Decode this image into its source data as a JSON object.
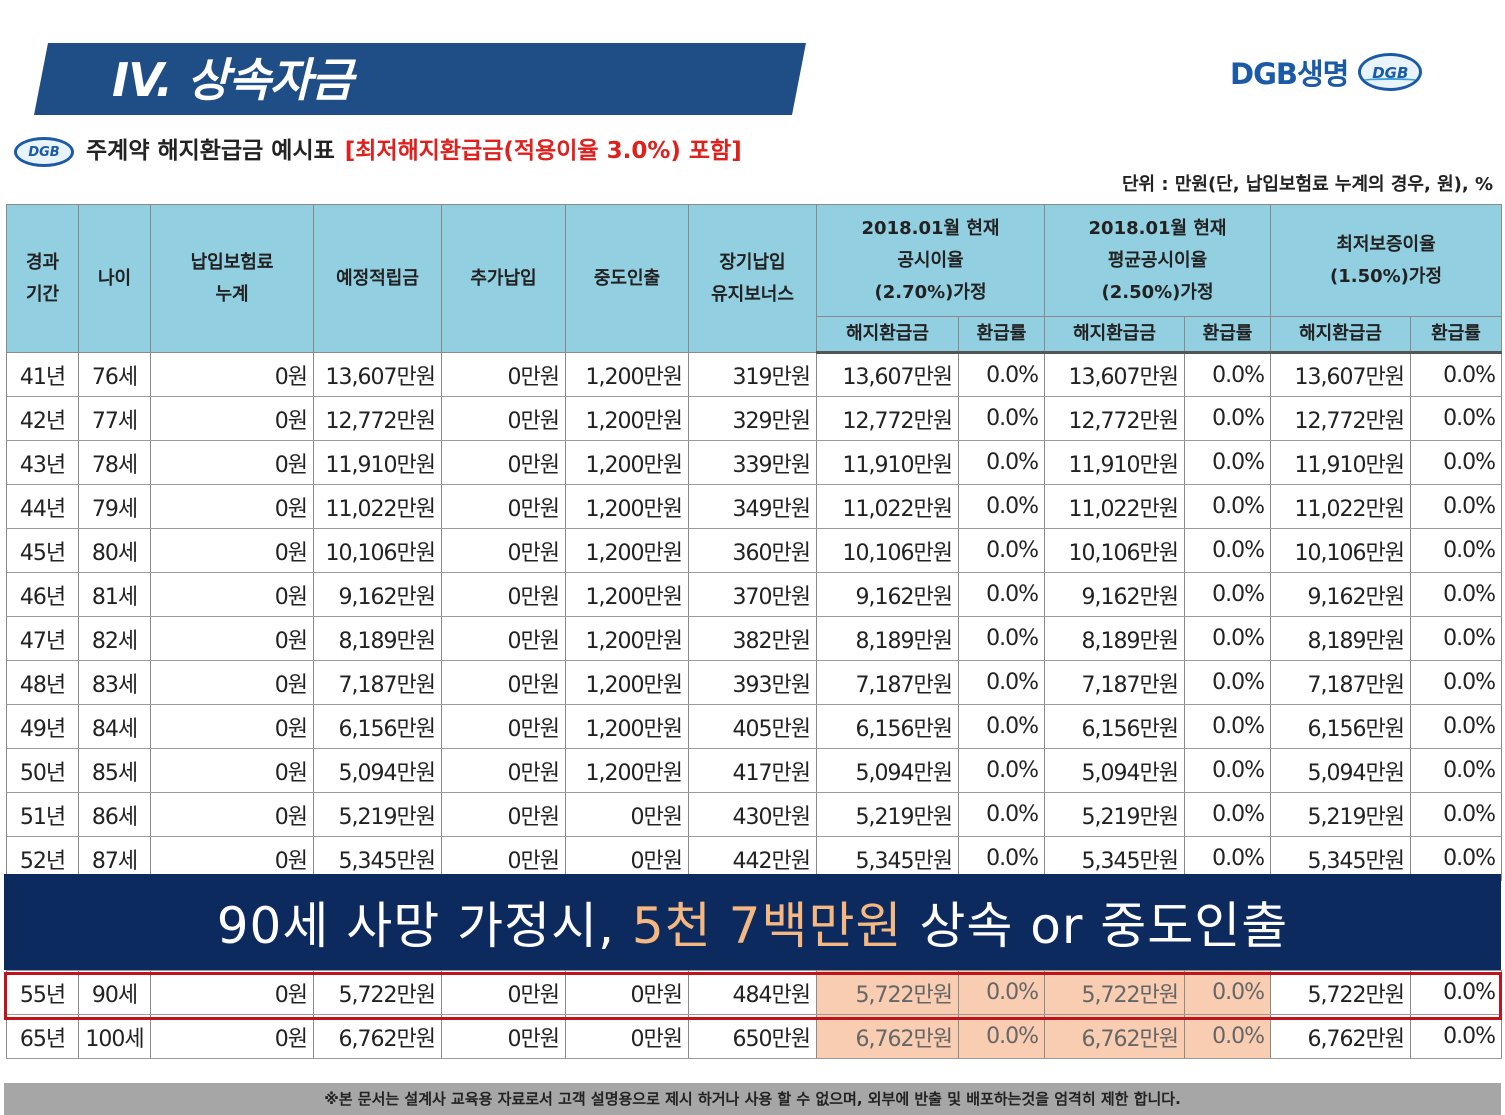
{
  "header": {
    "title": "IV. 상속자금",
    "brand_name": "DGB생명",
    "logo_text": "DGB"
  },
  "subheader": {
    "logo_text": "DGB",
    "title": "주계약 해지환급금 예시표",
    "title_red": "[최저해지환급금(적용이율 3.0%) 포함]"
  },
  "unit_note": "단위 : 만원(단, 납입보험료 누계의 경우, 원), %",
  "table": {
    "headers": {
      "period": "경과\n기간",
      "age": "나이",
      "premium": "납입보험료\n누계",
      "reserve": "예정적립금",
      "additional": "추가납입",
      "withdrawal": "중도인출",
      "bonus": "장기납입\n유지보너스",
      "group1": "2018.01월 현재\n공시이율\n(2.70%)가정",
      "group2": "2018.01월 현재\n평균공시이율\n(2.50%)가정",
      "group3": "최저보증이율\n(1.50%)가정",
      "surrender": "해지환급금",
      "rate": "환급률"
    },
    "rows": [
      [
        "41년",
        "76세",
        "0원",
        "13,607만원",
        "0만원",
        "1,200만원",
        "319만원",
        "13,607만원",
        "0.0%",
        "13,607만원",
        "0.0%",
        "13,607만원",
        "0.0%"
      ],
      [
        "42년",
        "77세",
        "0원",
        "12,772만원",
        "0만원",
        "1,200만원",
        "329만원",
        "12,772만원",
        "0.0%",
        "12,772만원",
        "0.0%",
        "12,772만원",
        "0.0%"
      ],
      [
        "43년",
        "78세",
        "0원",
        "11,910만원",
        "0만원",
        "1,200만원",
        "339만원",
        "11,910만원",
        "0.0%",
        "11,910만원",
        "0.0%",
        "11,910만원",
        "0.0%"
      ],
      [
        "44년",
        "79세",
        "0원",
        "11,022만원",
        "0만원",
        "1,200만원",
        "349만원",
        "11,022만원",
        "0.0%",
        "11,022만원",
        "0.0%",
        "11,022만원",
        "0.0%"
      ],
      [
        "45년",
        "80세",
        "0원",
        "10,106만원",
        "0만원",
        "1,200만원",
        "360만원",
        "10,106만원",
        "0.0%",
        "10,106만원",
        "0.0%",
        "10,106만원",
        "0.0%"
      ],
      [
        "46년",
        "81세",
        "0원",
        "9,162만원",
        "0만원",
        "1,200만원",
        "370만원",
        "9,162만원",
        "0.0%",
        "9,162만원",
        "0.0%",
        "9,162만원",
        "0.0%"
      ],
      [
        "47년",
        "82세",
        "0원",
        "8,189만원",
        "0만원",
        "1,200만원",
        "382만원",
        "8,189만원",
        "0.0%",
        "8,189만원",
        "0.0%",
        "8,189만원",
        "0.0%"
      ],
      [
        "48년",
        "83세",
        "0원",
        "7,187만원",
        "0만원",
        "1,200만원",
        "393만원",
        "7,187만원",
        "0.0%",
        "7,187만원",
        "0.0%",
        "7,187만원",
        "0.0%"
      ],
      [
        "49년",
        "84세",
        "0원",
        "6,156만원",
        "0만원",
        "1,200만원",
        "405만원",
        "6,156만원",
        "0.0%",
        "6,156만원",
        "0.0%",
        "6,156만원",
        "0.0%"
      ],
      [
        "50년",
        "85세",
        "0원",
        "5,094만원",
        "0만원",
        "1,200만원",
        "417만원",
        "5,094만원",
        "0.0%",
        "5,094만원",
        "0.0%",
        "5,094만원",
        "0.0%"
      ],
      [
        "51년",
        "86세",
        "0원",
        "5,219만원",
        "0만원",
        "0만원",
        "430만원",
        "5,219만원",
        "0.0%",
        "5,219만원",
        "0.0%",
        "5,219만원",
        "0.0%"
      ],
      [
        "52년",
        "87세",
        "0원",
        "5,345만원",
        "0만원",
        "0만원",
        "442만원",
        "5,345만원",
        "0.0%",
        "5,345만원",
        "0.0%",
        "5,345만원",
        "0.0%"
      ]
    ],
    "highlight_rows": [
      [
        "55년",
        "90세",
        "0원",
        "5,722만원",
        "0만원",
        "0만원",
        "484만원",
        "5,722만원",
        "0.0%",
        "5,722만원",
        "0.0%",
        "5,722만원",
        "0.0%"
      ],
      [
        "65년",
        "100세",
        "0원",
        "6,762만원",
        "0만원",
        "0만원",
        "650만원",
        "6,762만원",
        "0.0%",
        "6,762만원",
        "0.0%",
        "6,762만원",
        "0.0%"
      ]
    ]
  },
  "overlay": {
    "text_before": "90세 사망 가정시, ",
    "text_accent": "5천 7백만원",
    "text_after": " 상속 or  중도인출"
  },
  "footer": "※본 문서는 설계사 교육용 자료로서 고객 설명용으로 제시 하거나 사용 할 수 없으며, 외부에 반출 및 배포하는것을 엄격히 제한 합니다.",
  "colors": {
    "banner": "#1f4e86",
    "header_bg": "#92cfe0",
    "overlay_bg": "#0d2a5f",
    "accent": "#f5b880",
    "highlight_cells": "#f8cdb2",
    "highlight_border": "#c0141c"
  }
}
